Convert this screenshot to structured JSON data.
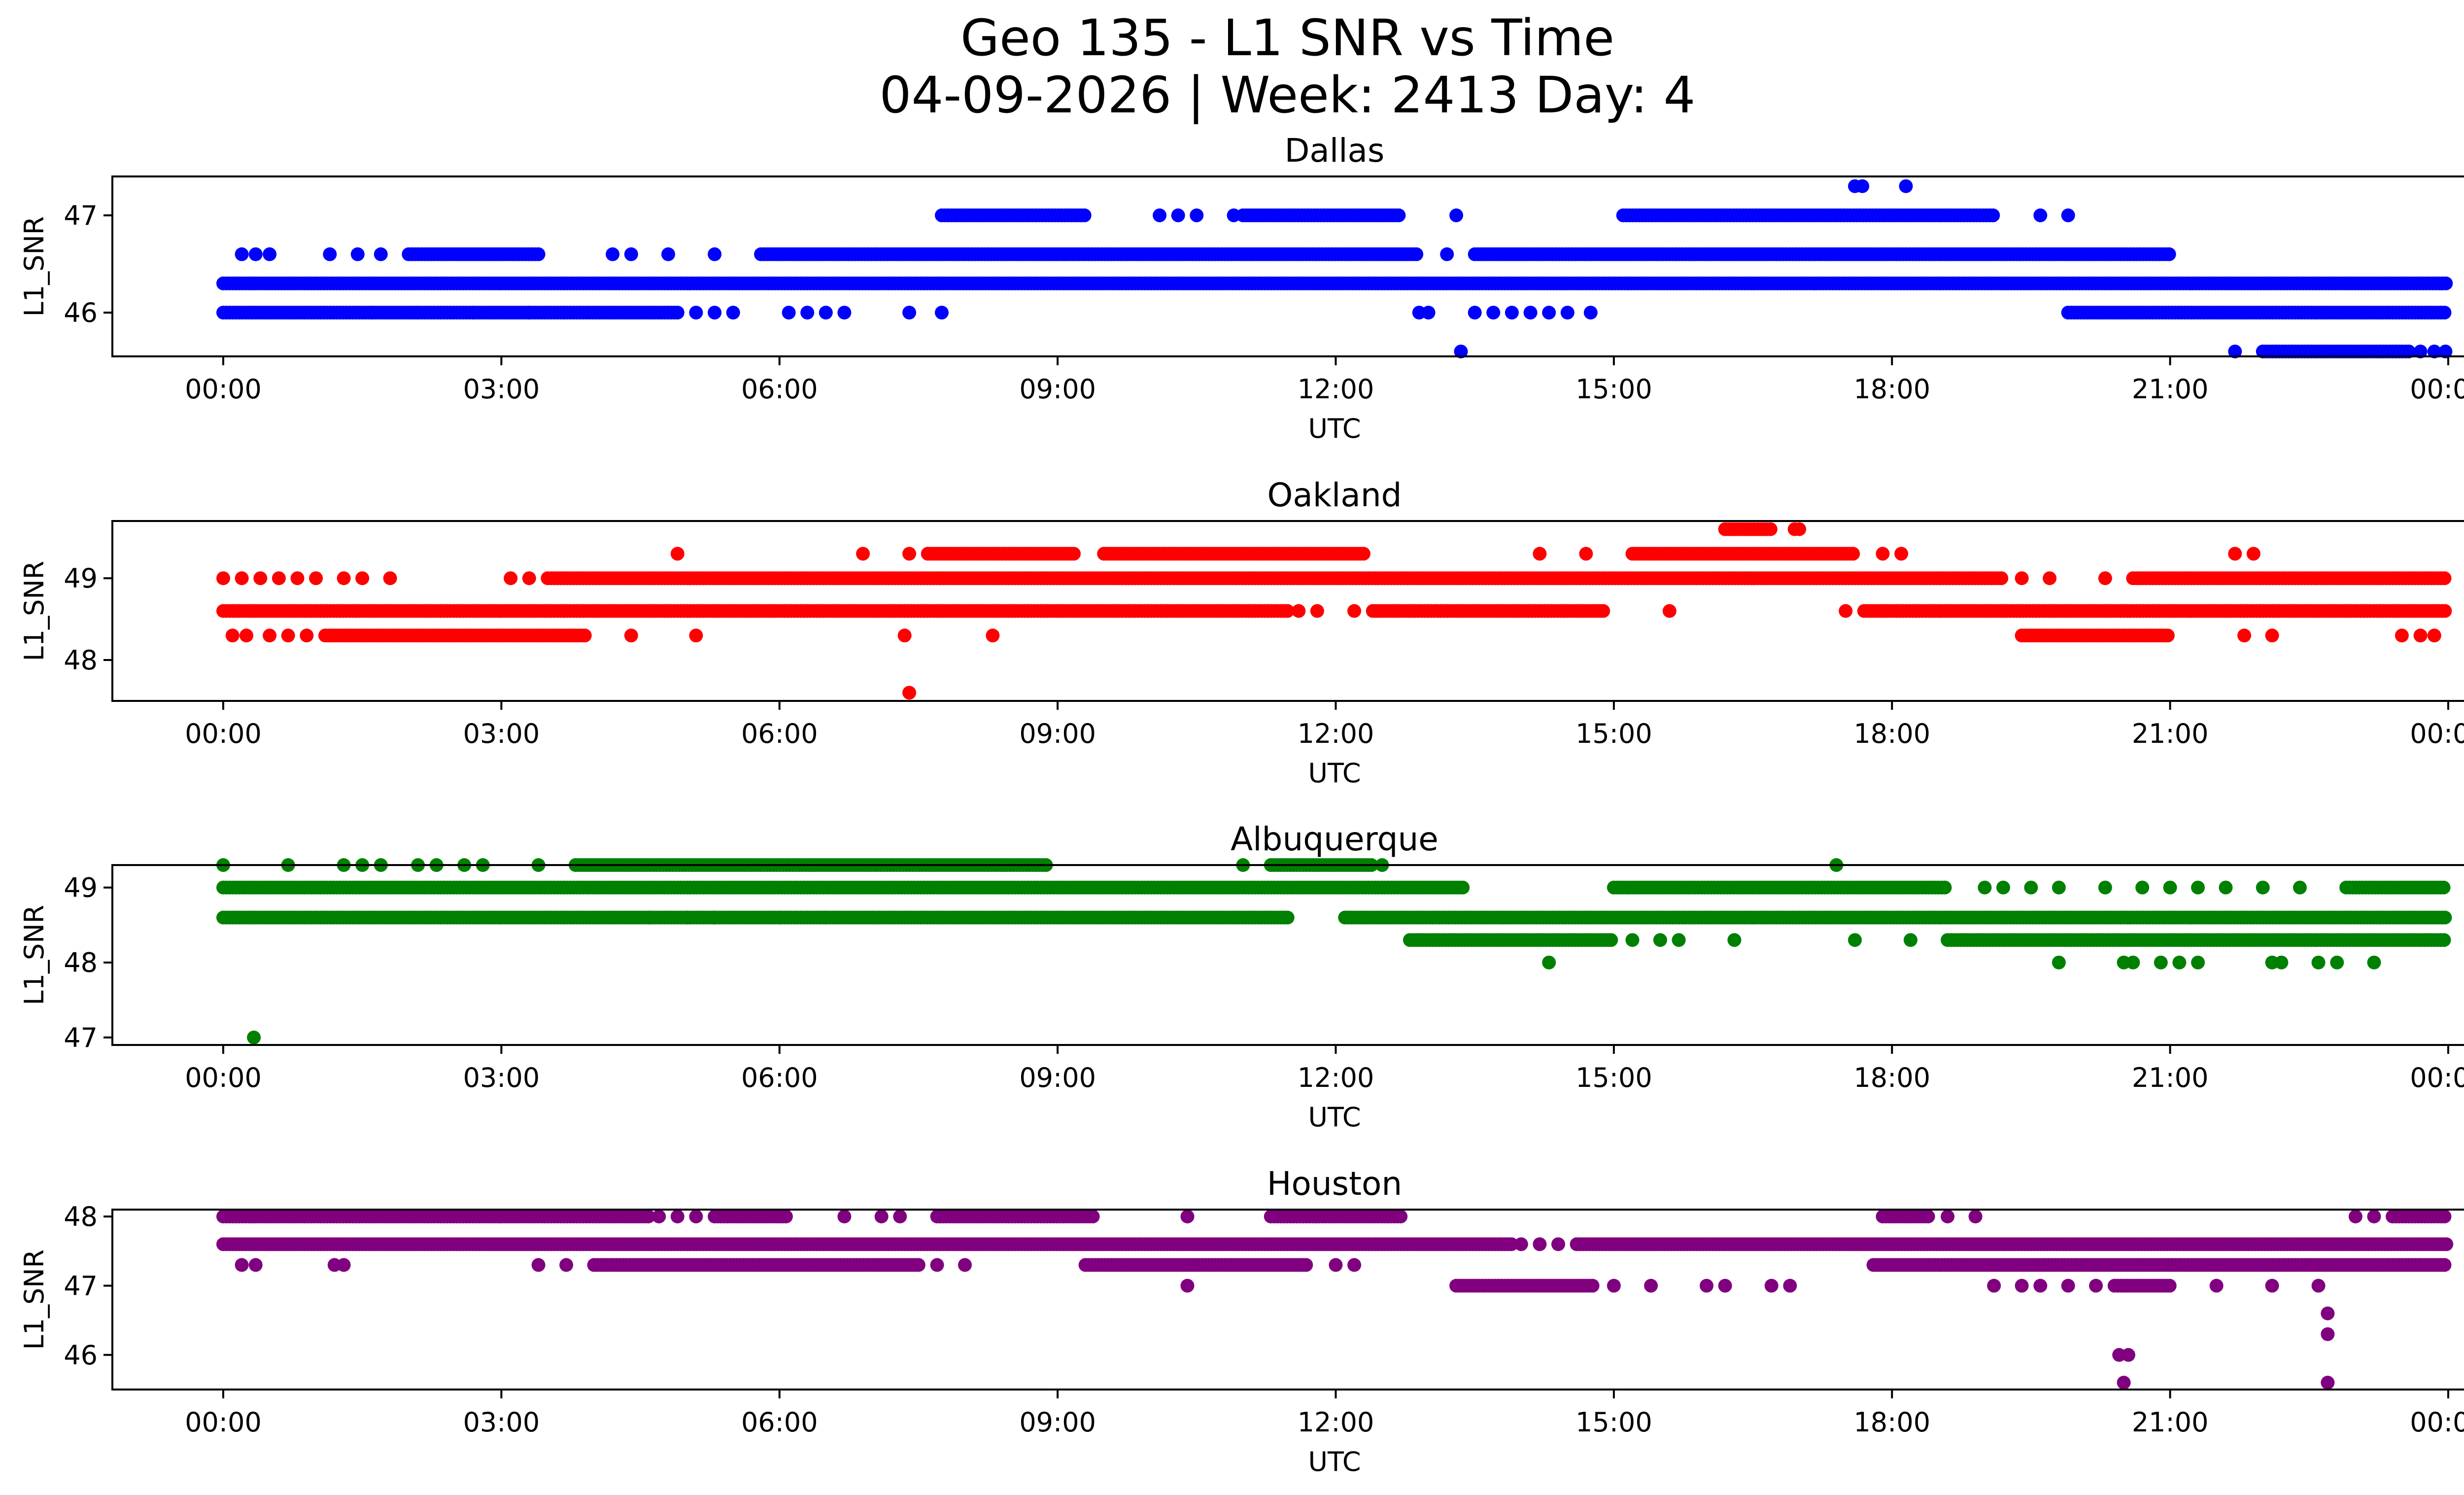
{
  "header": {
    "title_line1": "Geo 135 - L1 SNR vs Time",
    "title_line2": "04-09-2026 | Week: 2413 Day: 4"
  },
  "chart_data": [
    {
      "type": "scatter",
      "title": "Dallas",
      "color": "#0000ff",
      "xlabel": "UTC",
      "ylabel": "L1_SNR",
      "xlim": [
        0,
        24
      ],
      "ylim": [
        45.55,
        47.4
      ],
      "xticks": [
        0,
        3,
        6,
        9,
        12,
        15,
        18,
        21,
        24
      ],
      "xtick_labels": [
        "00:00",
        "03:00",
        "06:00",
        "09:00",
        "12:00",
        "15:00",
        "18:00",
        "21:00",
        "00:00"
      ],
      "yticks": [
        46,
        47
      ],
      "ytick_labels": [
        "46",
        "47"
      ],
      "series": [
        {
          "level": 46.3,
          "dense": [
            [
              0.0,
              23.98
            ]
          ],
          "points": []
        },
        {
          "level": 46.0,
          "dense": [
            [
              0.0,
              4.9
            ],
            [
              19.9,
              23.98
            ]
          ],
          "points": [
            1.6,
            2.1,
            2.7,
            3.3,
            5.1,
            5.3,
            5.5,
            6.1,
            6.3,
            6.5,
            6.7,
            7.4,
            7.75,
            12.9,
            13.0,
            13.5,
            13.7,
            13.9,
            14.1,
            14.3,
            14.5,
            14.75
          ]
        },
        {
          "level": 46.6,
          "dense": [
            [
              2.0,
              3.4
            ],
            [
              5.8,
              12.9
            ],
            [
              13.5,
              21.0
            ]
          ],
          "points": [
            0.2,
            0.35,
            0.5,
            1.15,
            1.45,
            1.7,
            4.2,
            4.4,
            4.8,
            5.3,
            13.2
          ]
        },
        {
          "level": 47.0,
          "dense": [
            [
              7.75,
              9.3
            ],
            [
              11.0,
              12.7
            ],
            [
              15.1,
              19.1
            ]
          ],
          "points": [
            10.1,
            10.3,
            10.5,
            10.9,
            13.3,
            19.6,
            19.9
          ]
        },
        {
          "level": 47.3,
          "dense": [],
          "points": [
            17.6,
            17.68,
            18.15
          ]
        },
        {
          "level": 45.6,
          "dense": [
            [
              22.0,
              23.6
            ]
          ],
          "points": [
            13.35,
            21.7,
            23.7,
            23.85,
            23.97
          ]
        }
      ]
    },
    {
      "type": "scatter",
      "title": "Oakland",
      "color": "#ff0000",
      "xlabel": "UTC",
      "ylabel": "L1_SNR",
      "xlim": [
        0,
        24
      ],
      "ylim": [
        47.5,
        49.7
      ],
      "xticks": [
        0,
        3,
        6,
        9,
        12,
        15,
        18,
        21,
        24
      ],
      "xtick_labels": [
        "00:00",
        "03:00",
        "06:00",
        "09:00",
        "12:00",
        "15:00",
        "18:00",
        "21:00",
        "00:00"
      ],
      "yticks": [
        48,
        49
      ],
      "ytick_labels": [
        "48",
        "49"
      ],
      "series": [
        {
          "level": 48.6,
          "dense": [
            [
              0.0,
              11.5
            ],
            [
              12.4,
              14.9
            ],
            [
              17.7,
              23.98
            ]
          ],
          "points": [
            11.6,
            11.8,
            12.2,
            15.6,
            17.5
          ]
        },
        {
          "level": 49.0,
          "dense": [
            [
              3.5,
              19.2
            ],
            [
              20.6,
              23.98
            ]
          ],
          "points": [
            0.0,
            0.2,
            0.4,
            0.6,
            0.8,
            1.0,
            1.3,
            1.5,
            1.8,
            3.1,
            3.3,
            19.4,
            19.7,
            20.3
          ]
        },
        {
          "level": 48.3,
          "dense": [
            [
              1.1,
              3.9
            ],
            [
              19.4,
              21.0
            ]
          ],
          "points": [
            0.1,
            0.25,
            0.5,
            0.7,
            0.9,
            4.4,
            5.1,
            7.35,
            8.3,
            21.8,
            22.1,
            23.5,
            23.7,
            23.85
          ]
        },
        {
          "level": 49.3,
          "dense": [
            [
              7.6,
              9.2
            ],
            [
              9.5,
              12.3
            ],
            [
              15.2,
              17.6
            ]
          ],
          "points": [
            4.9,
            6.9,
            7.4,
            14.2,
            14.7,
            17.9,
            18.1,
            21.7,
            21.9
          ]
        },
        {
          "level": 49.6,
          "dense": [
            [
              16.2,
              16.7
            ]
          ],
          "points": [
            16.95,
            17.0
          ]
        },
        {
          "level": 47.6,
          "dense": [],
          "points": [
            7.4
          ]
        }
      ]
    },
    {
      "type": "scatter",
      "title": "Albuquerque",
      "color": "#008000",
      "xlabel": "UTC",
      "ylabel": "L1_SNR",
      "xlim": [
        0,
        24
      ],
      "ylim": [
        46.9,
        49.3
      ],
      "xticks": [
        0,
        3,
        6,
        9,
        12,
        15,
        18,
        21,
        24
      ],
      "xtick_labels": [
        "00:00",
        "03:00",
        "06:00",
        "09:00",
        "12:00",
        "15:00",
        "18:00",
        "21:00",
        "00:00"
      ],
      "yticks": [
        47,
        48,
        49
      ],
      "ytick_labels": [
        "47",
        "48",
        "49"
      ],
      "series": [
        {
          "level": 49.0,
          "dense": [
            [
              0.0,
              13.4
            ],
            [
              15.0,
              18.6
            ],
            [
              22.9,
              23.98
            ]
          ],
          "points": [
            19.0,
            19.2,
            19.5,
            19.8,
            20.3,
            20.7,
            21.0,
            21.3,
            21.6,
            22.0,
            22.4
          ]
        },
        {
          "level": 48.6,
          "dense": [
            [
              0.0,
              11.5
            ],
            [
              12.1,
              23.98
            ]
          ],
          "points": [
            4.6,
            5.0,
            5.3,
            6.0,
            6.5,
            7.0
          ]
        },
        {
          "level": 48.3,
          "dense": [
            [
              12.8,
              15.0
            ],
            [
              18.6,
              23.98
            ]
          ],
          "points": [
            15.2,
            15.5,
            15.7,
            16.3,
            17.6,
            18.2
          ]
        },
        {
          "level": 49.3,
          "dense": [
            [
              3.8,
              8.9
            ],
            [
              11.3,
              12.4
            ]
          ],
          "points": [
            0.0,
            0.7,
            1.3,
            1.5,
            1.7,
            2.1,
            2.3,
            2.6,
            2.8,
            3.4,
            11.0,
            12.5,
            17.4
          ]
        },
        {
          "level": 48.0,
          "dense": [],
          "points": [
            14.3,
            19.8,
            20.5,
            20.6,
            20.9,
            21.1,
            21.3,
            22.1,
            22.2,
            22.6,
            22.8,
            23.2
          ]
        },
        {
          "level": 47.0,
          "dense": [],
          "points": [
            0.33
          ]
        }
      ]
    },
    {
      "type": "scatter",
      "title": "Houston",
      "color": "#800080",
      "xlabel": "UTC",
      "ylabel": "L1_SNR",
      "xlim": [
        0,
        24
      ],
      "ylim": [
        45.5,
        48.1
      ],
      "xticks": [
        0,
        3,
        6,
        9,
        12,
        15,
        18,
        21,
        24
      ],
      "xtick_labels": [
        "00:00",
        "03:00",
        "06:00",
        "09:00",
        "12:00",
        "15:00",
        "18:00",
        "21:00",
        "00:00"
      ],
      "yticks": [
        46,
        47,
        48
      ],
      "ytick_labels": [
        "46",
        "47",
        "48"
      ],
      "series": [
        {
          "level": 47.6,
          "dense": [
            [
              0.0,
              13.9
            ],
            [
              14.6,
              23.98
            ]
          ],
          "points": [
            14.0,
            14.2,
            14.4
          ]
        },
        {
          "level": 48.0,
          "dense": [
            [
              0.0,
              4.6
            ],
            [
              5.3,
              6.1
            ],
            [
              7.7,
              9.4
            ],
            [
              11.3,
              12.7
            ],
            [
              17.9,
              18.4
            ],
            [
              23.4,
              23.98
            ]
          ],
          "points": [
            4.7,
            4.9,
            5.1,
            6.7,
            7.1,
            7.3,
            10.4,
            18.6,
            18.9,
            23.0,
            23.2
          ]
        },
        {
          "level": 47.3,
          "dense": [
            [
              4.0,
              7.5
            ],
            [
              9.3,
              11.7
            ],
            [
              17.8,
              23.98
            ]
          ],
          "points": [
            0.2,
            0.35,
            1.2,
            1.3,
            3.4,
            3.7,
            7.7,
            8.0,
            12.0,
            12.2
          ]
        },
        {
          "level": 47.0,
          "dense": [
            [
              13.3,
              14.8
            ],
            [
              20.4,
              21.0
            ]
          ],
          "points": [
            10.4,
            15.0,
            15.4,
            16.0,
            16.2,
            16.7,
            16.9,
            19.1,
            19.4,
            19.6,
            19.9,
            20.2,
            21.5,
            22.1,
            22.6
          ]
        },
        {
          "level": 46.0,
          "dense": [],
          "points": [
            20.45,
            20.55
          ]
        },
        {
          "level": 46.6,
          "dense": [],
          "points": [
            22.7
          ]
        },
        {
          "level": 46.3,
          "dense": [],
          "points": [
            22.7
          ]
        },
        {
          "level": 45.6,
          "dense": [],
          "points": [
            20.5,
            22.7
          ]
        }
      ]
    }
  ]
}
